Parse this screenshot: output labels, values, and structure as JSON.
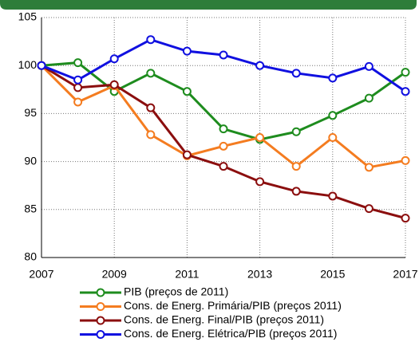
{
  "chart_data": {
    "type": "line",
    "x": [
      2007,
      2008,
      2009,
      2010,
      2011,
      2012,
      2013,
      2014,
      2015,
      2016,
      2017
    ],
    "series": [
      {
        "name": "PIB (preços de 2011)",
        "color": "#1e8c1e",
        "values": [
          100,
          100.3,
          97.3,
          99.2,
          97.3,
          93.4,
          92.3,
          93.1,
          94.8,
          96.6,
          99.3
        ]
      },
      {
        "name": "Cons. de Energ. Primária/PIB (preços 2011)",
        "color": "#f47c20",
        "values": [
          100,
          96.2,
          97.9,
          92.8,
          90.6,
          91.6,
          92.5,
          89.5,
          92.5,
          89.4,
          90.1
        ]
      },
      {
        "name": "Cons. de Energ. Final/PIB (preços 2011)",
        "color": "#8b0e0e",
        "values": [
          100,
          97.7,
          98.0,
          95.6,
          90.7,
          89.5,
          87.9,
          86.9,
          86.4,
          85.1,
          84.1
        ]
      },
      {
        "name": "Cons. de Energ. Elétrica/PIB (preços 2011)",
        "color": "#1010e0",
        "values": [
          100,
          98.5,
          100.7,
          102.7,
          101.5,
          101.1,
          100,
          99.2,
          98.7,
          99.9,
          97.3
        ]
      }
    ],
    "xlim": [
      2007,
      2017
    ],
    "xticks": [
      2007,
      2009,
      2011,
      2013,
      2015,
      2017
    ],
    "ylim": [
      80,
      105
    ],
    "yticks": [
      80,
      85,
      90,
      95,
      100,
      105
    ],
    "grid": true
  }
}
